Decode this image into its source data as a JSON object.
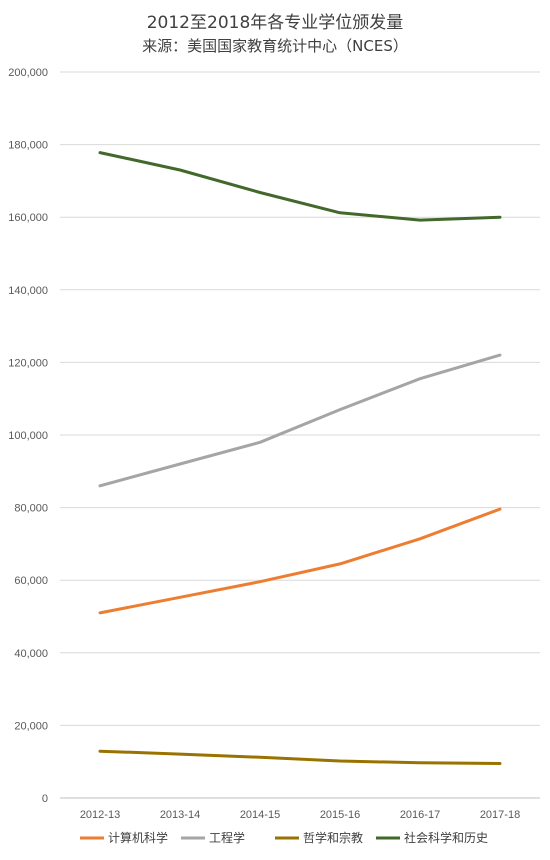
{
  "chart_data": {
    "type": "line",
    "title": "2012至2018年各专业学位颁发量",
    "subtitle": "来源：美国国家教育统计中心（NCES）",
    "categories": [
      "2012-13",
      "2013-14",
      "2014-15",
      "2015-16",
      "2016-17",
      "2017-18"
    ],
    "ylim": [
      0,
      200000
    ],
    "yticks": [
      0,
      20000,
      40000,
      60000,
      80000,
      100000,
      120000,
      140000,
      160000,
      180000,
      200000
    ],
    "ytick_labels": [
      "0",
      "20,000",
      "40,000",
      "60,000",
      "80,000",
      "100,000",
      "120,000",
      "140,000",
      "160,000",
      "180,000",
      "200,000"
    ],
    "grid": true,
    "legend_position": "bottom",
    "series": [
      {
        "name": "计算机科学",
        "color": "#ED7D31",
        "values": [
          51000,
          55300,
          59600,
          64500,
          71400,
          79600
        ]
      },
      {
        "name": "工程学",
        "color": "#A5A5A5",
        "values": [
          86000,
          92000,
          98000,
          107000,
          115500,
          122000
        ]
      },
      {
        "name": "哲学和宗教",
        "color": "#997300",
        "values": [
          12900,
          12100,
          11200,
          10200,
          9700,
          9500
        ]
      },
      {
        "name": "社会科学和历史",
        "color": "#43682B",
        "values": [
          177800,
          173000,
          166800,
          161200,
          159200,
          160000
        ]
      }
    ]
  }
}
